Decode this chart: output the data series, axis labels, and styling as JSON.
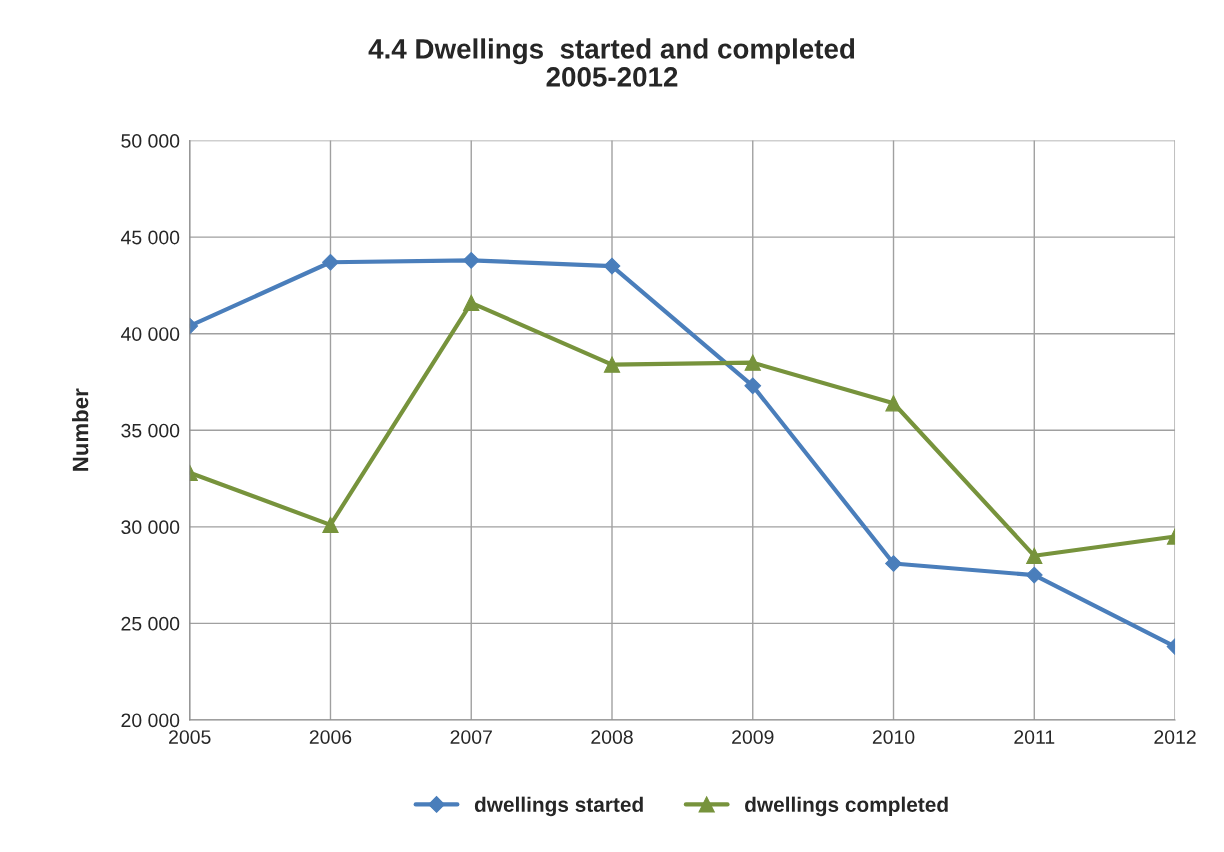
{
  "chart_data": {
    "type": "line",
    "title": "4.4 Dwellings  started and completed\n2005-2012",
    "ylabel": "Number",
    "categories": [
      "2005",
      "2006",
      "2007",
      "2008",
      "2009",
      "2010",
      "2011",
      "2012"
    ],
    "series": [
      {
        "name": "dwellings started",
        "color": "#4a7ebb",
        "marker": "diamond",
        "values": [
          40400,
          43700,
          43800,
          43500,
          37300,
          28100,
          27500,
          23800
        ]
      },
      {
        "name": "dwellings completed",
        "color": "#77933c",
        "marker": "triangle",
        "values": [
          32800,
          30100,
          41600,
          38400,
          38500,
          36400,
          28500,
          29500
        ]
      }
    ],
    "ylim": [
      20000,
      50000
    ],
    "yticks": [
      {
        "value": 20000,
        "label": "20 000"
      },
      {
        "value": 25000,
        "label": "25 000"
      },
      {
        "value": 30000,
        "label": "30 000"
      },
      {
        "value": 35000,
        "label": "35 000"
      },
      {
        "value": 40000,
        "label": "40 000"
      },
      {
        "value": 45000,
        "label": "45 000"
      },
      {
        "value": 50000,
        "label": "50 000"
      }
    ],
    "grid": true,
    "legend": "bottom",
    "line_style": "solid"
  }
}
